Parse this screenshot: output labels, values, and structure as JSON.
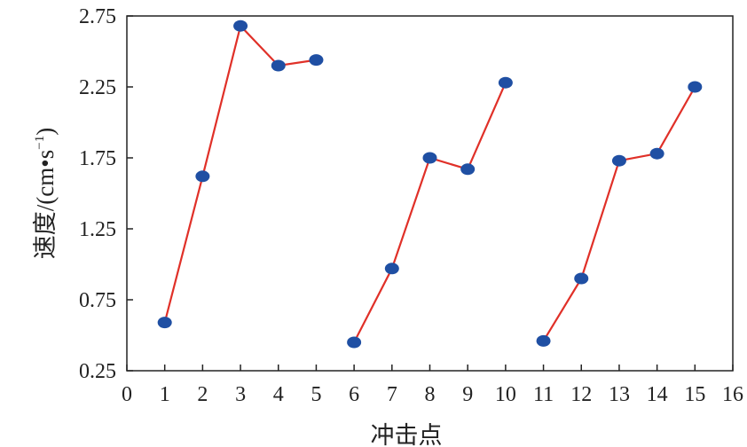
{
  "chart_data": {
    "type": "line",
    "title": "",
    "xlabel": "冲击点",
    "ylabel_main": "速度/(cm•s",
    "ylabel_sup": "−1",
    "ylabel_close": ")",
    "xlim": [
      0,
      16
    ],
    "ylim": [
      0.25,
      2.75
    ],
    "xticks": [
      0,
      1,
      2,
      3,
      4,
      5,
      6,
      7,
      8,
      9,
      10,
      11,
      12,
      13,
      14,
      15,
      16
    ],
    "xtick_labels": [
      "0",
      "1",
      "2",
      "3",
      "4",
      "5",
      "6",
      "7",
      "8",
      "9",
      "10",
      "11",
      "12",
      "13",
      "14",
      "15",
      "16"
    ],
    "yticks": [
      0.25,
      0.75,
      1.25,
      1.75,
      2.25,
      2.75
    ],
    "ytick_labels": [
      "0.25",
      "0.75",
      "1.25",
      "1.75",
      "2.25",
      "2.75"
    ],
    "grid": false,
    "line_color": "#e03028",
    "marker_color": "#1f4fa3",
    "series": [
      {
        "x": [
          1,
          2,
          3,
          4,
          5
        ],
        "y": [
          0.59,
          1.62,
          2.68,
          2.4,
          2.44
        ]
      },
      {
        "x": [
          6,
          7,
          8,
          9,
          10
        ],
        "y": [
          0.45,
          0.97,
          1.75,
          1.67,
          2.28
        ]
      },
      {
        "x": [
          11,
          12,
          13,
          14,
          15
        ],
        "y": [
          0.46,
          0.9,
          1.73,
          1.78,
          2.25
        ]
      }
    ]
  }
}
